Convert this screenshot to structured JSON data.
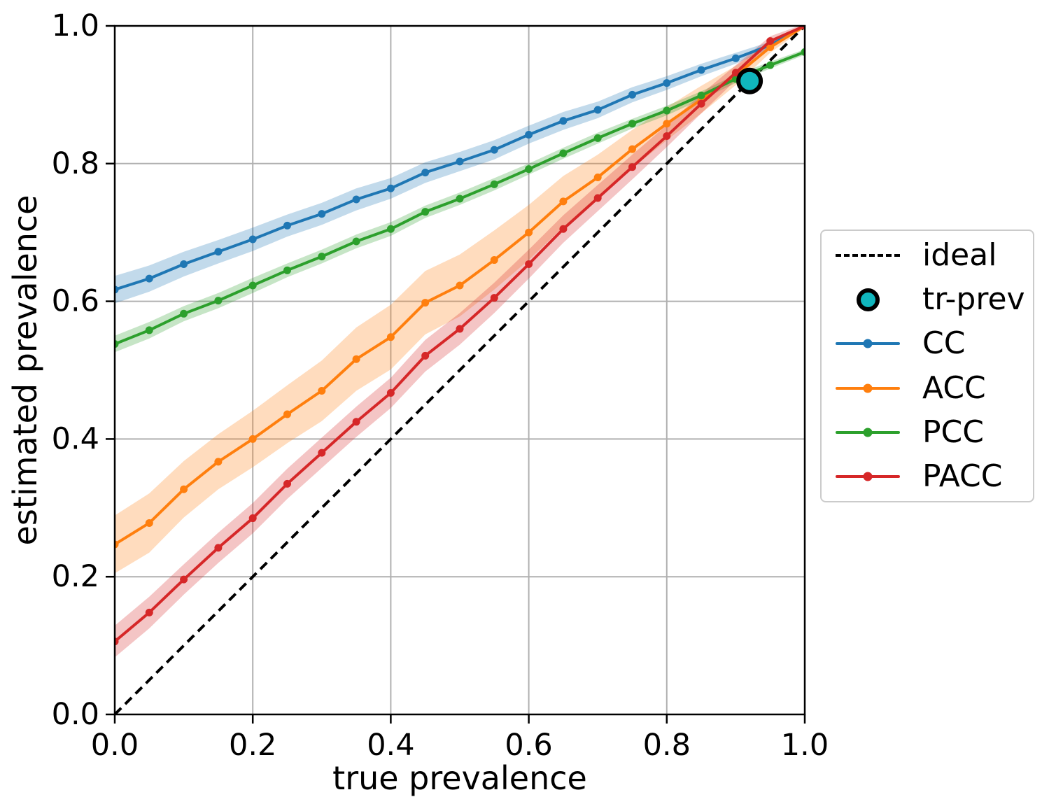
{
  "chart_data": {
    "type": "line",
    "title": "",
    "xlabel": "true prevalence",
    "ylabel": "estimated prevalence",
    "xlim": [
      0.0,
      1.0
    ],
    "ylim": [
      0.0,
      1.0
    ],
    "grid": true,
    "grid_color": "#b0b0b0",
    "xtick_labels": [
      "0.0",
      "0.2",
      "0.4",
      "0.6",
      "0.8",
      "1.0"
    ],
    "ytick_labels": [
      "0.0",
      "0.2",
      "0.4",
      "0.6",
      "0.8",
      "1.0"
    ],
    "xticks": [
      0.0,
      0.2,
      0.4,
      0.6,
      0.8,
      1.0
    ],
    "yticks": [
      0.0,
      0.2,
      0.4,
      0.6,
      0.8,
      1.0
    ],
    "x": [
      0.0,
      0.05,
      0.1,
      0.15,
      0.2,
      0.25,
      0.3,
      0.35,
      0.4,
      0.45,
      0.5,
      0.55,
      0.6,
      0.65,
      0.7,
      0.75,
      0.8,
      0.85,
      0.9,
      0.95,
      1.0
    ],
    "series": [
      {
        "name": "CC",
        "color": "#1f77b4",
        "values": [
          0.617,
          0.633,
          0.654,
          0.672,
          0.69,
          0.71,
          0.727,
          0.748,
          0.764,
          0.787,
          0.803,
          0.82,
          0.842,
          0.862,
          0.878,
          0.9,
          0.917,
          0.936,
          0.953,
          0.972,
          1.0
        ],
        "band": [
          0.02,
          0.019,
          0.018,
          0.017,
          0.017,
          0.016,
          0.016,
          0.016,
          0.015,
          0.015,
          0.014,
          0.014,
          0.013,
          0.013,
          0.012,
          0.011,
          0.01,
          0.009,
          0.008,
          0.005,
          0.002
        ]
      },
      {
        "name": "ACC",
        "color": "#ff7f0e",
        "values": [
          0.247,
          0.278,
          0.327,
          0.367,
          0.4,
          0.436,
          0.47,
          0.516,
          0.548,
          0.598,
          0.623,
          0.66,
          0.7,
          0.745,
          0.78,
          0.821,
          0.858,
          0.893,
          0.928,
          0.969,
          1.0
        ],
        "band": [
          0.042,
          0.043,
          0.041,
          0.04,
          0.041,
          0.042,
          0.044,
          0.046,
          0.047,
          0.046,
          0.045,
          0.043,
          0.04,
          0.037,
          0.033,
          0.028,
          0.024,
          0.02,
          0.014,
          0.008,
          0.003
        ]
      },
      {
        "name": "PCC",
        "color": "#2ca02c",
        "values": [
          0.538,
          0.558,
          0.582,
          0.601,
          0.623,
          0.645,
          0.665,
          0.687,
          0.705,
          0.73,
          0.749,
          0.77,
          0.792,
          0.815,
          0.837,
          0.858,
          0.877,
          0.899,
          0.923,
          0.943,
          0.962
        ],
        "band": [
          0.012,
          0.012,
          0.011,
          0.011,
          0.011,
          0.01,
          0.01,
          0.01,
          0.01,
          0.009,
          0.009,
          0.009,
          0.008,
          0.008,
          0.008,
          0.007,
          0.007,
          0.006,
          0.006,
          0.005,
          0.004
        ]
      },
      {
        "name": "PACC",
        "color": "#d62728",
        "values": [
          0.106,
          0.148,
          0.196,
          0.242,
          0.285,
          0.335,
          0.38,
          0.425,
          0.467,
          0.521,
          0.56,
          0.605,
          0.654,
          0.705,
          0.75,
          0.795,
          0.84,
          0.887,
          0.932,
          0.978,
          1.0
        ],
        "band": [
          0.023,
          0.023,
          0.022,
          0.022,
          0.022,
          0.022,
          0.022,
          0.022,
          0.022,
          0.023,
          0.023,
          0.022,
          0.021,
          0.02,
          0.019,
          0.018,
          0.016,
          0.014,
          0.011,
          0.007,
          0.003
        ]
      }
    ],
    "ideal": {
      "label": "ideal",
      "color": "#000000",
      "style": "dashed",
      "from": [
        0.0,
        0.0
      ],
      "to": [
        1.0,
        1.0
      ]
    },
    "tr_prev": {
      "label": "tr-prev",
      "x": 0.92,
      "y": 0.92,
      "fill": "#10b6bd",
      "edge": "#000000"
    },
    "legend_position": "right-outside"
  },
  "legend": {
    "items": [
      {
        "label": "ideal"
      },
      {
        "label": "tr-prev"
      },
      {
        "label": "CC"
      },
      {
        "label": "ACC"
      },
      {
        "label": "PCC"
      },
      {
        "label": "PACC"
      }
    ]
  }
}
